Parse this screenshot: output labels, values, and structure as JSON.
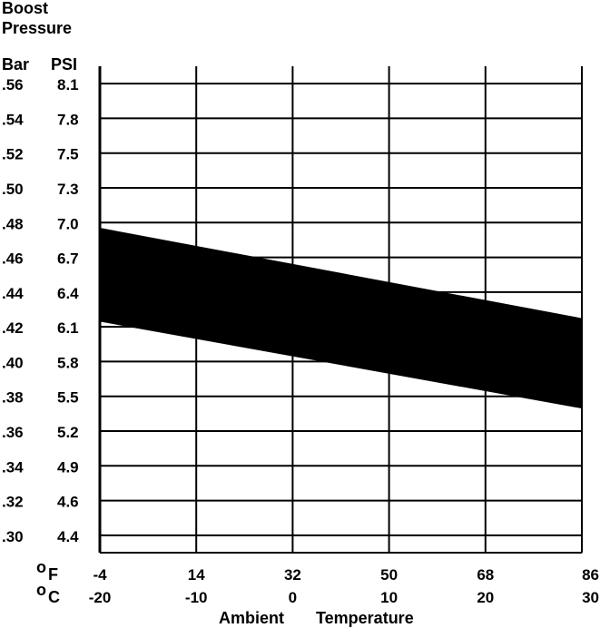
{
  "chart_data": {
    "type": "area",
    "title_line1": "Boost",
    "title_line2": "Pressure",
    "y_unit_left": "Bar",
    "y_unit_right": "PSI",
    "bar_ticks": [
      ".56",
      ".54",
      ".52",
      ".50",
      ".48",
      ".46",
      ".44",
      ".42",
      ".40",
      ".38",
      ".36",
      ".34",
      ".32",
      ".30"
    ],
    "psi_ticks": [
      "8.1",
      "7.8",
      "7.5",
      "7.3",
      "7.0",
      "6.7",
      "6.4",
      "6.1",
      "5.8",
      "5.5",
      "5.2",
      "4.9",
      "4.6",
      "4.4"
    ],
    "x_unit_f": "F",
    "x_unit_c": "C",
    "x_unit_degree": "o",
    "f_ticks": [
      "-4",
      "14",
      "32",
      "50",
      "68",
      "86"
    ],
    "c_ticks": [
      "-20",
      "-10",
      "0",
      "10",
      "20",
      "30"
    ],
    "xlabel_1": "Ambient",
    "xlabel_2": "Temperature",
    "xlim": [
      -20,
      30
    ],
    "ylim_bar": [
      0.29,
      0.57
    ],
    "band": {
      "x_celsius": [
        -20,
        30
      ],
      "upper_bar": [
        0.477,
        0.425
      ],
      "lower_bar": [
        0.423,
        0.373
      ]
    },
    "grid": true,
    "colors": {
      "band": "#000000",
      "grid": "#000000",
      "background": "#ffffff"
    }
  }
}
